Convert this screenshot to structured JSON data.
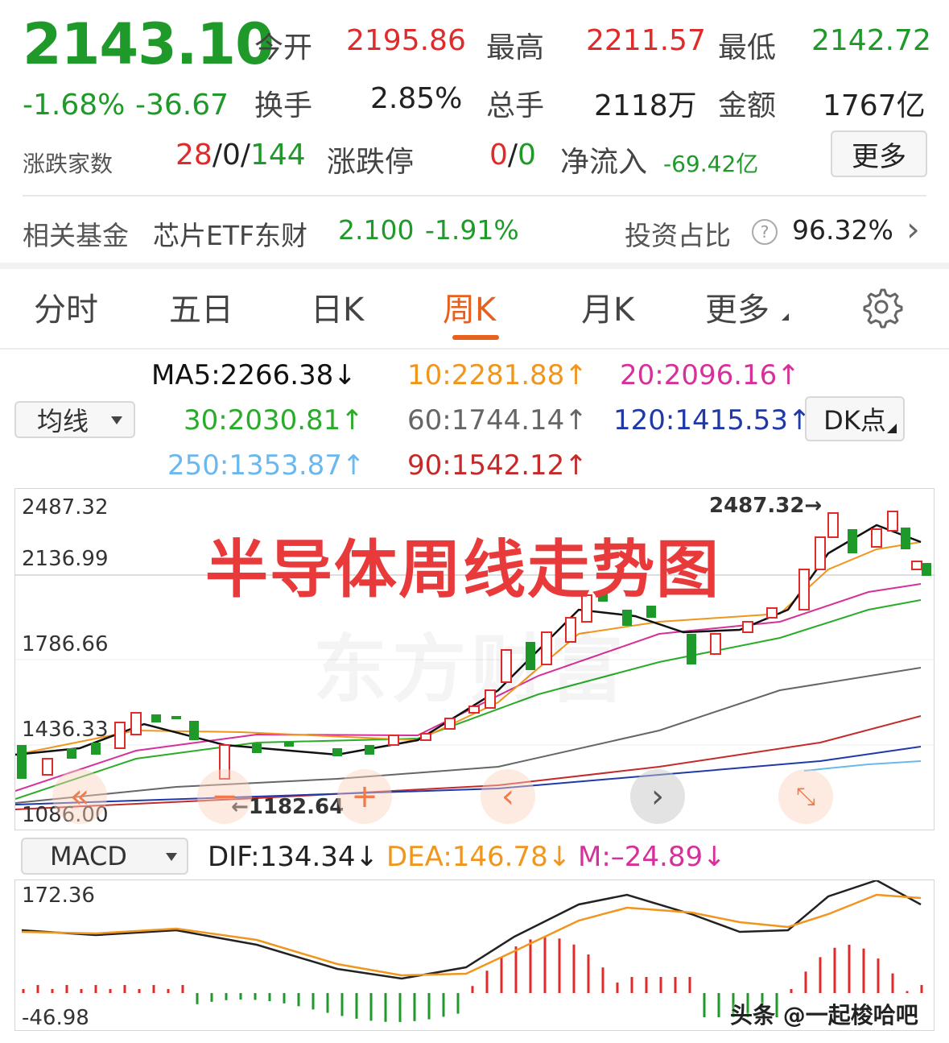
{
  "quote": {
    "price": "2143.10",
    "change_pct": "-1.68%",
    "change_abs": "-36.67",
    "open_label": "今开",
    "open_value": "2195.86",
    "high_label": "最高",
    "high_value": "2211.57",
    "low_label": "最低",
    "low_value": "2142.72",
    "turnover_label": "换手",
    "turnover_value": "2.85%",
    "volume_label": "总手",
    "volume_value": "2118万",
    "amount_label": "金额",
    "amount_value": "1767亿",
    "breadth_label": "涨跌家数",
    "breadth_up": "28",
    "breadth_flat": "0",
    "breadth_down": "144",
    "limit_label": "涨跌停",
    "limit_up": "0",
    "limit_down": "0",
    "inflow_label": "净流入",
    "inflow_value": "-69.42亿",
    "more_button": "更多",
    "sep": "/"
  },
  "fund": {
    "label": "相关基金",
    "name": "芯片ETF东财",
    "price": "2.100",
    "change": "-1.91%",
    "ratio_label": "投资占比",
    "ratio_value": "96.32%",
    "help_glyph": "?",
    "arrow_glyph": "›"
  },
  "tabs": [
    {
      "label": "分时"
    },
    {
      "label": "五日"
    },
    {
      "label": "日K"
    },
    {
      "label": "周K",
      "active": true
    },
    {
      "label": "月K"
    },
    {
      "label": "更多"
    }
  ],
  "ma": {
    "selector": "均线",
    "dk_button": "DK点",
    "ma5": "MA5:2266.38↓",
    "ma10": "10:2281.88↑",
    "ma20": "20:2096.16↑",
    "ma30": "30:2030.81↑",
    "ma60": "60:1744.14↑",
    "ma120": "120:1415.53↑",
    "ma250": "250:1353.87↑",
    "ma90": "90:1542.12↑"
  },
  "kchart": {
    "y_labels": [
      "2487.32",
      "2136.99",
      "1786.66",
      "1436.33",
      "1086.00"
    ],
    "high_marker": "2487.32→",
    "low_marker": "←1182.64",
    "overlay_title": "半导体周线走势图",
    "watermark": "东方财富"
  },
  "macd": {
    "selector": "MACD",
    "dif": "DIF:134.34↓",
    "dea": "DEA:146.78↓",
    "m": "M:–24.89↓",
    "y_top": "172.36",
    "y_bottom": "-46.98"
  },
  "footer": {
    "credit": "头条 @一起梭哈吧"
  },
  "colors": {
    "up": "#e02b2b",
    "down": "#1f9a2a",
    "ma5": "#111111",
    "ma10": "#f0961e",
    "ma20": "#d6309a",
    "ma30": "#2aab2a",
    "ma60": "#666666",
    "ma120": "#1f3aa8",
    "ma250": "#6ab8ee",
    "ma90": "#c42a2a",
    "active_tab": "#e8601e"
  }
}
